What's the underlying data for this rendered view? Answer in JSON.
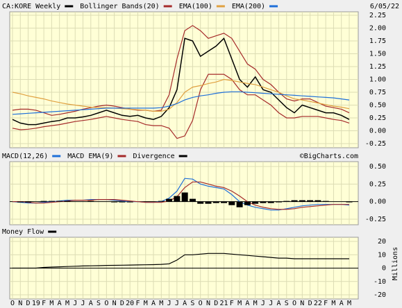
{
  "chart_data": [
    {
      "type": "line",
      "date": "6/05/22",
      "ylim": [
        -0.25,
        2.25
      ],
      "yticks": [
        {
          "value": 2.25,
          "label": "2.25"
        },
        {
          "value": 2,
          "label": "2.00"
        },
        {
          "value": 1.75,
          "label": "1.75"
        },
        {
          "value": 1.5,
          "label": "1.50"
        },
        {
          "value": 1.25,
          "label": "1.25"
        },
        {
          "value": 1,
          "label": "1.00"
        },
        {
          "value": 0.75,
          "label": "0.75"
        },
        {
          "value": 0.5,
          "label": "0.50"
        },
        {
          "value": 0.25,
          "label": "0.25"
        },
        {
          "value": 0,
          "label": "0.00"
        },
        {
          "value": -0.25,
          "label": "-0.25"
        }
      ],
      "grid": true,
      "series": [
        {
          "name": "CA:KORE Weekly",
          "color": "#000000",
          "values": [
            0.22,
            0.15,
            0.12,
            0.12,
            0.15,
            0.18,
            0.2,
            0.25,
            0.25,
            0.27,
            0.3,
            0.35,
            0.4,
            0.35,
            0.3,
            0.28,
            0.3,
            0.25,
            0.22,
            0.28,
            0.45,
            0.8,
            1.8,
            1.75,
            1.45,
            1.55,
            1.65,
            1.8,
            1.4,
            1.0,
            0.85,
            1.05,
            0.8,
            0.75,
            0.6,
            0.45,
            0.35,
            0.5,
            0.45,
            0.4,
            0.35,
            0.35,
            0.3,
            0.22
          ]
        },
        {
          "name": "Bollinger Bands(20)",
          "color": "#a52a2a",
          "upper": [
            0.4,
            0.42,
            0.42,
            0.4,
            0.35,
            0.3,
            0.32,
            0.35,
            0.38,
            0.42,
            0.45,
            0.48,
            0.5,
            0.48,
            0.45,
            0.42,
            0.4,
            0.4,
            0.38,
            0.4,
            0.7,
            1.4,
            1.95,
            2.05,
            1.95,
            1.8,
            1.85,
            1.9,
            1.8,
            1.55,
            1.3,
            1.2,
            1.0,
            0.9,
            0.75,
            0.62,
            0.58,
            0.62,
            0.62,
            0.55,
            0.48,
            0.45,
            0.42,
            0.35
          ],
          "lower": [
            0.05,
            0.02,
            0.03,
            0.05,
            0.08,
            0.1,
            0.12,
            0.15,
            0.18,
            0.2,
            0.22,
            0.25,
            0.28,
            0.25,
            0.22,
            0.2,
            0.18,
            0.12,
            0.1,
            0.1,
            0.05,
            -0.15,
            -0.1,
            0.2,
            0.8,
            1.1,
            1.1,
            1.1,
            1.0,
            0.8,
            0.7,
            0.7,
            0.6,
            0.5,
            0.35,
            0.25,
            0.25,
            0.28,
            0.28,
            0.28,
            0.25,
            0.22,
            0.2,
            0.15
          ]
        },
        {
          "name": "EMA(100)",
          "color": "#e0a040",
          "values": [
            0.75,
            0.72,
            0.68,
            0.65,
            0.62,
            0.58,
            0.55,
            0.52,
            0.5,
            0.48,
            0.46,
            0.45,
            0.45,
            0.44,
            0.43,
            0.42,
            0.41,
            0.4,
            0.38,
            0.38,
            0.42,
            0.55,
            0.75,
            0.85,
            0.88,
            0.92,
            0.95,
            1.0,
            0.98,
            0.95,
            0.92,
            0.9,
            0.85,
            0.8,
            0.75,
            0.68,
            0.62,
            0.6,
            0.57,
            0.54,
            0.51,
            0.48,
            0.46,
            0.43
          ]
        },
        {
          "name": "EMA(200)",
          "color": "#1e6fd9",
          "values": [
            0.32,
            0.33,
            0.34,
            0.35,
            0.36,
            0.37,
            0.38,
            0.39,
            0.4,
            0.41,
            0.42,
            0.43,
            0.44,
            0.44,
            0.44,
            0.44,
            0.44,
            0.44,
            0.44,
            0.45,
            0.48,
            0.53,
            0.6,
            0.65,
            0.68,
            0.7,
            0.73,
            0.75,
            0.76,
            0.76,
            0.75,
            0.74,
            0.73,
            0.72,
            0.71,
            0.7,
            0.69,
            0.68,
            0.67,
            0.66,
            0.65,
            0.64,
            0.62,
            0.6
          ]
        }
      ]
    },
    {
      "type": "line",
      "credit": "©BigCharts.com",
      "ylim": [
        -0.25,
        0.5
      ],
      "yticks": [
        {
          "value": 0.5,
          "label": "0.50"
        },
        {
          "value": 0.25,
          "label": "0.25"
        },
        {
          "value": 0,
          "label": "0.00"
        },
        {
          "value": -0.25,
          "label": "-0.25"
        }
      ],
      "grid": true,
      "series": [
        {
          "name": "MACD(12,26)",
          "color": "#1e6fd9",
          "values": [
            0.0,
            -0.01,
            -0.02,
            -0.02,
            -0.01,
            0.0,
            0.01,
            0.02,
            0.02,
            0.02,
            0.03,
            0.03,
            0.03,
            0.02,
            0.01,
            0.0,
            0.0,
            -0.01,
            -0.01,
            0.0,
            0.05,
            0.15,
            0.33,
            0.32,
            0.25,
            0.22,
            0.2,
            0.18,
            0.1,
            0.0,
            -0.05,
            -0.08,
            -0.1,
            -0.12,
            -0.12,
            -0.1,
            -0.08,
            -0.06,
            -0.05,
            -0.04,
            -0.04,
            -0.04,
            -0.04,
            -0.05
          ]
        },
        {
          "name": "MACD EMA(9)",
          "color": "#a52a2a",
          "values": [
            0.0,
            0.0,
            -0.01,
            -0.02,
            -0.02,
            -0.01,
            0.0,
            0.01,
            0.02,
            0.02,
            0.02,
            0.03,
            0.03,
            0.03,
            0.02,
            0.01,
            0.0,
            -0.01,
            -0.01,
            -0.01,
            0.01,
            0.07,
            0.2,
            0.28,
            0.28,
            0.25,
            0.22,
            0.2,
            0.15,
            0.08,
            0.0,
            -0.05,
            -0.08,
            -0.1,
            -0.11,
            -0.11,
            -0.1,
            -0.08,
            -0.07,
            -0.06,
            -0.05,
            -0.04,
            -0.04,
            -0.04
          ]
        },
        {
          "name": "Divergence",
          "color": "#000000",
          "style": "bar",
          "values": [
            0,
            -0.01,
            -0.01,
            0,
            0.01,
            0.01,
            0.01,
            0.01,
            0,
            0,
            0.01,
            0,
            0,
            -0.01,
            -0.01,
            -0.01,
            0,
            0,
            0,
            0.01,
            0.04,
            0.08,
            0.13,
            0.04,
            -0.03,
            -0.03,
            -0.02,
            -0.02,
            -0.05,
            -0.08,
            -0.05,
            -0.03,
            -0.02,
            -0.02,
            -0.01,
            0.01,
            0.02,
            0.02,
            0.02,
            0.02,
            0.01,
            0,
            0,
            -0.01
          ]
        }
      ]
    },
    {
      "type": "line",
      "ylabel": "Millions",
      "ylim": [
        -20,
        20
      ],
      "yticks": [
        20,
        10,
        0,
        -10,
        -20
      ],
      "grid": true,
      "categories": [
        "O",
        "N",
        "D",
        "19",
        "F",
        "M",
        "A",
        "M",
        "J",
        "J",
        "A",
        "S",
        "O",
        "N",
        "D",
        "20",
        "F",
        "M",
        "A",
        "M",
        "J",
        "J",
        "A",
        "S",
        "O",
        "N",
        "D",
        "21",
        "F",
        "M",
        "A",
        "M",
        "J",
        "J",
        "A",
        "S",
        "O",
        "N",
        "D",
        "22",
        "F",
        "M",
        "A",
        "M"
      ],
      "series": [
        {
          "name": "Money Flow",
          "color": "#000000",
          "values": [
            0,
            0,
            0,
            0,
            0.5,
            0.8,
            1,
            1.2,
            1.4,
            1.6,
            1.7,
            1.8,
            2,
            2.1,
            2.2,
            2.3,
            2.4,
            2.5,
            2.6,
            2.8,
            3.2,
            6,
            10,
            10,
            10.5,
            11,
            11,
            11,
            10.5,
            10,
            9.5,
            9,
            8.5,
            8,
            7.5,
            7.5,
            7,
            7,
            7,
            7,
            7,
            7,
            7,
            7
          ]
        }
      ]
    }
  ]
}
